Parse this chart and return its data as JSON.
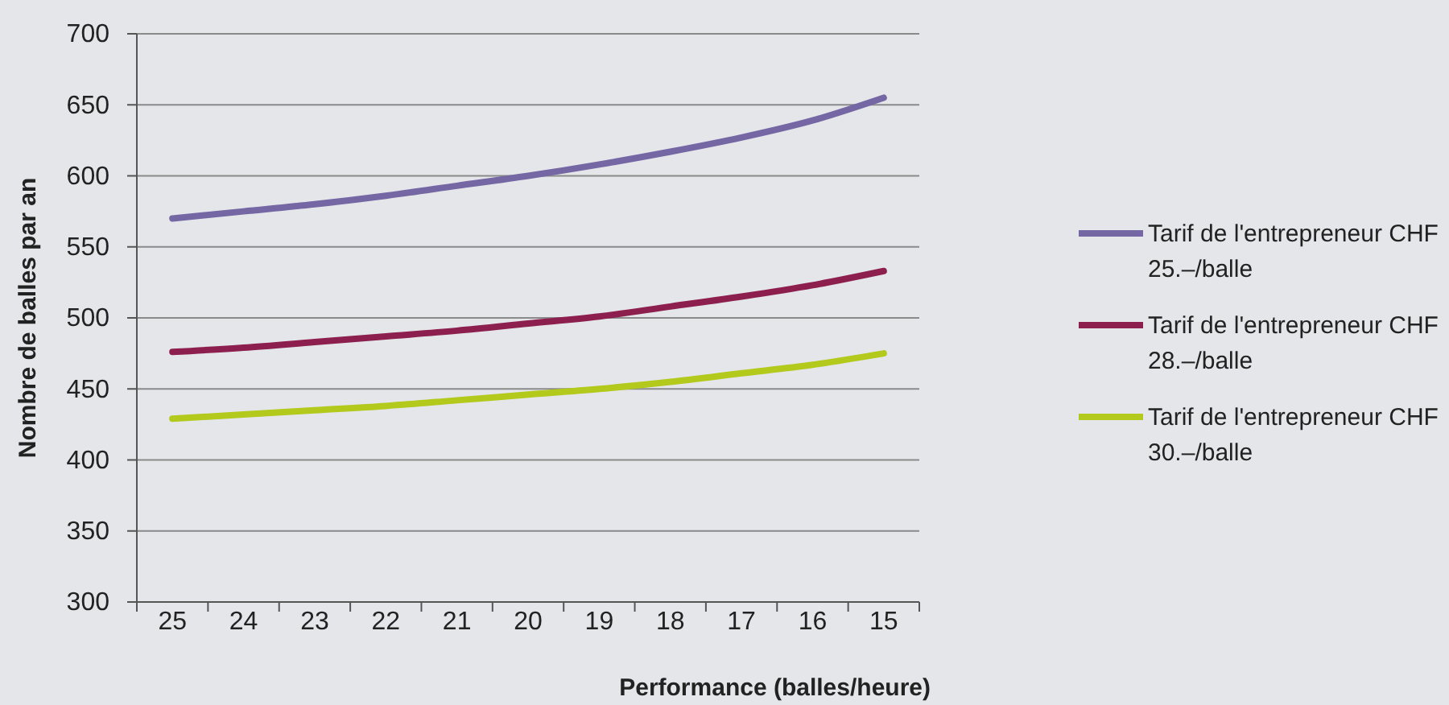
{
  "chart_data": {
    "type": "line",
    "xlabel": "Performance (balles/heure)",
    "ylabel": "Nombre de balles par an",
    "categories": [
      "25",
      "24",
      "23",
      "22",
      "21",
      "20",
      "19",
      "18",
      "17",
      "16",
      "15"
    ],
    "series": [
      {
        "name": "Tarif de l'entrepreneur CHF 25.–/balle",
        "color": "#7566a4",
        "values": [
          570,
          575,
          580,
          586,
          593,
          600,
          608,
          617,
          627,
          639,
          655
        ]
      },
      {
        "name": "Tarif de l'entrepreneur CHF 28.–/balle",
        "color": "#8c1f4e",
        "values": [
          476,
          479,
          483,
          487,
          491,
          496,
          501,
          508,
          515,
          523,
          533
        ]
      },
      {
        "name": "Tarif de l'entrepreneur CHF 30.–/balle",
        "color": "#b3c91c",
        "values": [
          429,
          432,
          435,
          438,
          442,
          446,
          450,
          455,
          461,
          467,
          475
        ]
      }
    ],
    "ylim": [
      300,
      700
    ],
    "yticks": [
      300,
      350,
      400,
      450,
      500,
      550,
      600,
      650,
      700
    ],
    "grid": "y",
    "legend": "right",
    "marker": "none",
    "line_style": "solid"
  }
}
